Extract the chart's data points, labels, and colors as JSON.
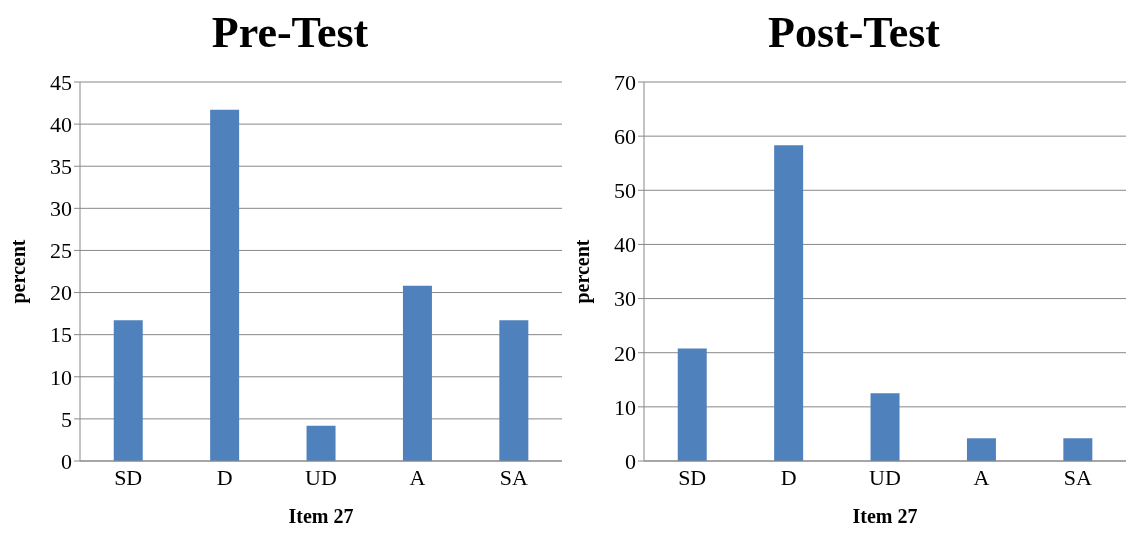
{
  "chart_data": [
    {
      "type": "bar",
      "title": "Pre-Test",
      "xlabel": "Item 27",
      "ylabel": "percent",
      "categories": [
        "SD",
        "D",
        "UD",
        "A",
        "SA"
      ],
      "values": [
        16.7,
        41.7,
        4.2,
        20.8,
        16.7
      ],
      "color": "#4f81bd",
      "ylim": [
        0,
        45
      ],
      "yticks": [
        0,
        5,
        10,
        15,
        20,
        25,
        30,
        35,
        40,
        45
      ],
      "grid": "y"
    },
    {
      "type": "bar",
      "title": "Post-Test",
      "xlabel": "Item 27",
      "ylabel": "percent",
      "categories": [
        "SD",
        "D",
        "UD",
        "A",
        "SA"
      ],
      "values": [
        20.8,
        58.3,
        12.5,
        4.2,
        4.2
      ],
      "color": "#4f81bd",
      "ylim": [
        0,
        70
      ],
      "yticks": [
        0,
        10,
        20,
        30,
        40,
        50,
        60,
        70
      ],
      "grid": "y"
    }
  ]
}
